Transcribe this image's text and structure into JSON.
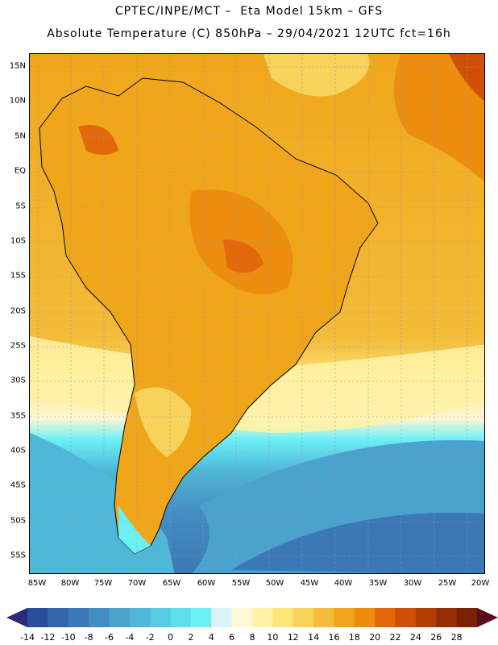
{
  "header": {
    "line1": "CPTEC/INPE/MCT –  Eta Model 15km – GFS",
    "line2": "Absolute Temperature (C) 850hPa – 29/04/2021 12UTC fct=16h"
  },
  "map": {
    "lat_labels": [
      "15N",
      "10N",
      "5N",
      "EQ",
      "5S",
      "10S",
      "15S",
      "20S",
      "25S",
      "30S",
      "35S",
      "40S",
      "45S",
      "50S",
      "55S"
    ],
    "lon_labels": [
      "85W",
      "80W",
      "75W",
      "70W",
      "65W",
      "60W",
      "55W",
      "50W",
      "45W",
      "40W",
      "35W",
      "30W",
      "25W",
      "20W"
    ]
  },
  "colorbar": {
    "labels": [
      "-14",
      "-12",
      "-10",
      "-8",
      "-6",
      "-4",
      "-2",
      "0",
      "2",
      "4",
      "6",
      "8",
      "10",
      "12",
      "14",
      "16",
      "18",
      "20",
      "22",
      "24",
      "26",
      "28"
    ],
    "colors": [
      "#2a4e9c",
      "#3363a8",
      "#3c78b5",
      "#448dc2",
      "#4aa2cd",
      "#4fb7d8",
      "#56cbe2",
      "#5fdeec",
      "#6cf0f5",
      "#d8f4f7",
      "#fff7d6",
      "#fff2a6",
      "#ffe57a",
      "#f8d35c",
      "#f3bc3a",
      "#f0a61a",
      "#ec8d0f",
      "#e2680a",
      "#cf4f06",
      "#b43c05",
      "#962e05",
      "#7a2005"
    ],
    "left_color": "#2b2b7a",
    "right_color": "#5a0a1a"
  }
}
